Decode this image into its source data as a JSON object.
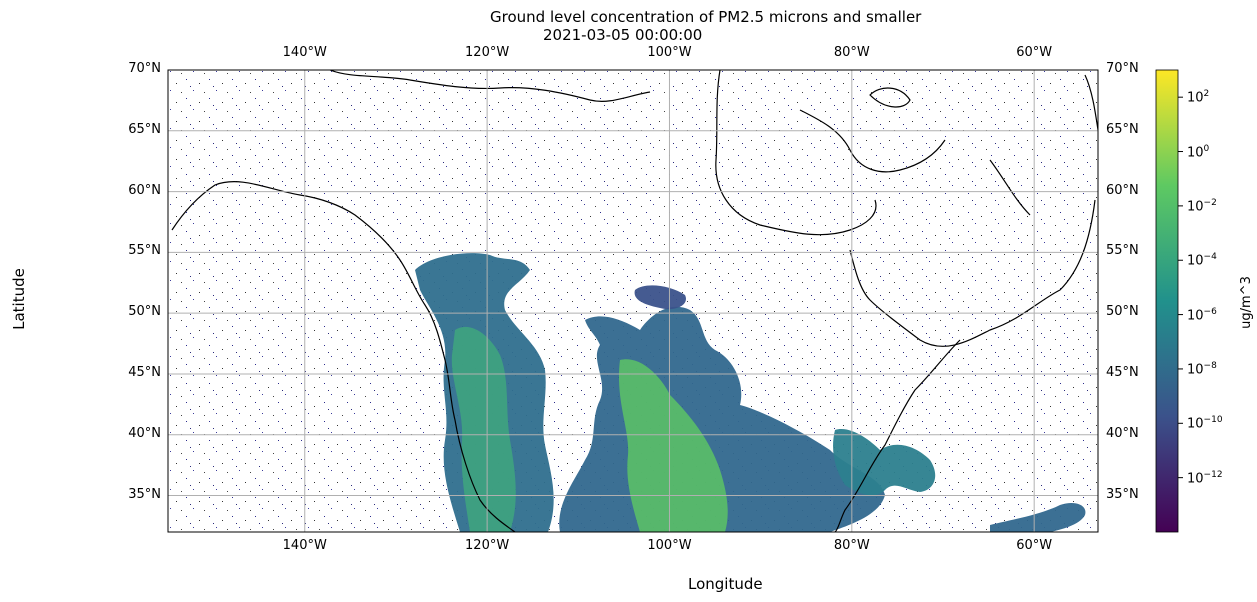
{
  "chart_data": {
    "type": "heatmap",
    "title": "Ground level concentration of PM2.5 microns and smaller",
    "subtitle": "2021-03-05 00:00:00",
    "xlabel": "Longitude",
    "ylabel": "Latitude",
    "colorbar_label": "ug/m^3",
    "colormap": "viridis",
    "colormap_stops": [
      "#440154",
      "#3b528b",
      "#21918c",
      "#5ec962",
      "#fde725"
    ],
    "xlim": [
      -155,
      -53
    ],
    "ylim": [
      32,
      70
    ],
    "grid": true,
    "x_ticks": [
      {
        "value": -140,
        "label": "140°W"
      },
      {
        "value": -120,
        "label": "120°W"
      },
      {
        "value": -100,
        "label": "100°W"
      },
      {
        "value": -80,
        "label": "80°W"
      },
      {
        "value": -60,
        "label": "60°W"
      }
    ],
    "y_ticks": [
      {
        "value": 70,
        "label": "70°N"
      },
      {
        "value": 65,
        "label": "65°N"
      },
      {
        "value": 60,
        "label": "60°N"
      },
      {
        "value": 55,
        "label": "55°N"
      },
      {
        "value": 50,
        "label": "50°N"
      },
      {
        "value": 45,
        "label": "45°N"
      },
      {
        "value": 40,
        "label": "40°N"
      },
      {
        "value": 35,
        "label": "35°N"
      }
    ],
    "colorbar_range_log10": [
      -14,
      3
    ],
    "colorbar_ticks": [
      {
        "exp": 2,
        "base": "10",
        "power": "2"
      },
      {
        "exp": 0,
        "base": "10",
        "power": "0"
      },
      {
        "exp": -2,
        "base": "10",
        "power": "−2"
      },
      {
        "exp": -4,
        "base": "10",
        "power": "−4"
      },
      {
        "exp": -6,
        "base": "10",
        "power": "−6"
      },
      {
        "exp": -8,
        "base": "10",
        "power": "−8"
      },
      {
        "exp": -10,
        "base": "10",
        "power": "−10"
      },
      {
        "exp": -12,
        "base": "10",
        "power": "−12"
      }
    ]
  }
}
